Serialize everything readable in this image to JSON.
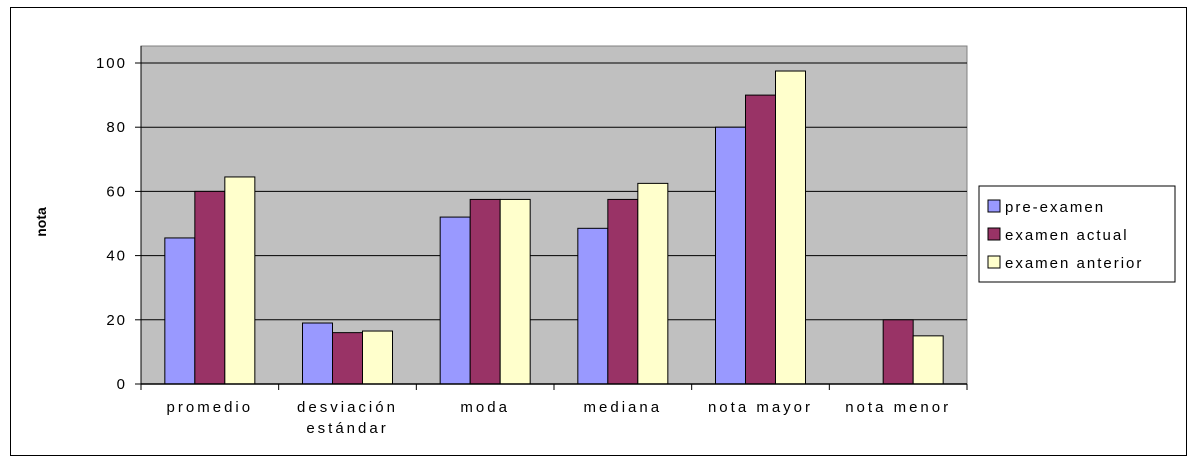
{
  "chart_data": {
    "type": "bar",
    "ylabel": "nota",
    "xlabel": "",
    "title": "",
    "ylim": [
      0,
      100
    ],
    "yticks": [
      0,
      20,
      40,
      60,
      80,
      100
    ],
    "grid": true,
    "legend_position": "right",
    "plot_background": "#c0c0c0",
    "categories": [
      [
        "promedio"
      ],
      [
        "desviación",
        "estándar"
      ],
      [
        "moda"
      ],
      [
        "mediana"
      ],
      [
        "nota mayor"
      ],
      [
        "nota menor"
      ]
    ],
    "series": [
      {
        "name": "pre-examen",
        "color": "#9999ff",
        "values": [
          45.5,
          19,
          52,
          48.5,
          80,
          0
        ]
      },
      {
        "name": "examen actual",
        "color": "#993366",
        "values": [
          60,
          16,
          57.5,
          57.5,
          90,
          20
        ]
      },
      {
        "name": "examen anterior",
        "color": "#ffffcc",
        "values": [
          64.5,
          16.5,
          57.5,
          62.5,
          97.5,
          15
        ]
      }
    ]
  }
}
